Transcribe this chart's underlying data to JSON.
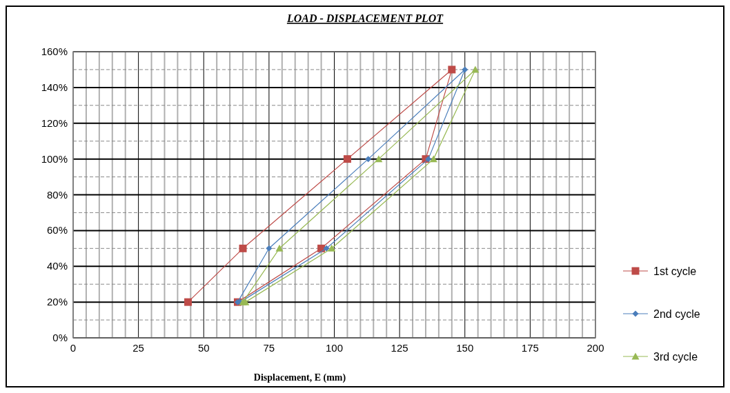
{
  "chart_data": {
    "type": "line",
    "title": "LOAD - DISPLACEMENT  PLOT",
    "xlabel": "Displacement, E (mm)",
    "series": [
      {
        "name": "1st cycle",
        "color": "#be4b48",
        "marker": "square",
        "x": [
          44,
          65,
          105,
          145,
          135,
          95,
          63
        ],
        "values": [
          20,
          50,
          100,
          150,
          100,
          50,
          20
        ]
      },
      {
        "name": "2nd cycle",
        "color": "#4a7ebb",
        "marker": "diamond",
        "x": [
          63,
          75,
          113,
          150,
          136,
          97,
          64
        ],
        "values": [
          20,
          50,
          100,
          150,
          100,
          50,
          20
        ]
      },
      {
        "name": "3rd cycle",
        "color": "#98b954",
        "marker": "triangle",
        "x": [
          65,
          79,
          117,
          154,
          138,
          99,
          66
        ],
        "values": [
          20,
          50,
          100,
          150,
          100,
          50,
          20
        ]
      }
    ],
    "xlim": [
      0,
      200
    ],
    "xticks": [
      0,
      {
        "value": 5,
        "label": null
      },
      {
        "value": 10,
        "label": null
      },
      {
        "value": 15,
        "label": null
      },
      {
        "value": 20,
        "label": null
      },
      25,
      {
        "value": 30,
        "label": null
      },
      {
        "value": 35,
        "label": null
      },
      {
        "value": 40,
        "label": null
      },
      {
        "value": 45,
        "label": null
      },
      50,
      {
        "value": 55,
        "label": null
      },
      {
        "value": 60,
        "label": null
      },
      {
        "value": 65,
        "label": null
      },
      {
        "value": 70,
        "label": null
      },
      75,
      {
        "value": 80,
        "label": null
      },
      {
        "value": 85,
        "label": null
      },
      {
        "value": 90,
        "label": null
      },
      {
        "value": 95,
        "label": null
      },
      100,
      {
        "value": 105,
        "label": null
      },
      {
        "value": 110,
        "label": null
      },
      {
        "value": 115,
        "label": null
      },
      {
        "value": 120,
        "label": null
      },
      125,
      {
        "value": 130,
        "label": null
      },
      {
        "value": 135,
        "label": null
      },
      {
        "value": 140,
        "label": null
      },
      {
        "value": 145,
        "label": null
      },
      150,
      {
        "value": 155,
        "label": null
      },
      {
        "value": 160,
        "label": null
      },
      {
        "value": 165,
        "label": null
      },
      {
        "value": 170,
        "label": null
      },
      175,
      {
        "value": 180,
        "label": null
      },
      {
        "value": 185,
        "label": null
      },
      {
        "value": 190,
        "label": null
      },
      {
        "value": 195,
        "label": null
      },
      200
    ],
    "ylim": [
      0,
      160
    ],
    "yticks": [
      {
        "value": 0,
        "label": "0%"
      },
      {
        "value": 10,
        "label": null
      },
      {
        "value": 20,
        "label": "20%"
      },
      {
        "value": 30,
        "label": null
      },
      {
        "value": 40,
        "label": "40%"
      },
      {
        "value": 50,
        "label": null
      },
      {
        "value": 60,
        "label": "60%"
      },
      {
        "value": 70,
        "label": null
      },
      {
        "value": 80,
        "label": "80%"
      },
      {
        "value": 90,
        "label": null
      },
      {
        "value": 100,
        "label": "100%"
      },
      {
        "value": 110,
        "label": null
      },
      {
        "value": 120,
        "label": "120%"
      },
      {
        "value": 130,
        "label": null
      },
      {
        "value": 140,
        "label": "140%"
      },
      {
        "value": 150,
        "label": null
      },
      {
        "value": 160,
        "label": "160%"
      }
    ],
    "grid": true,
    "legend": "right",
    "line_style": "solid"
  }
}
